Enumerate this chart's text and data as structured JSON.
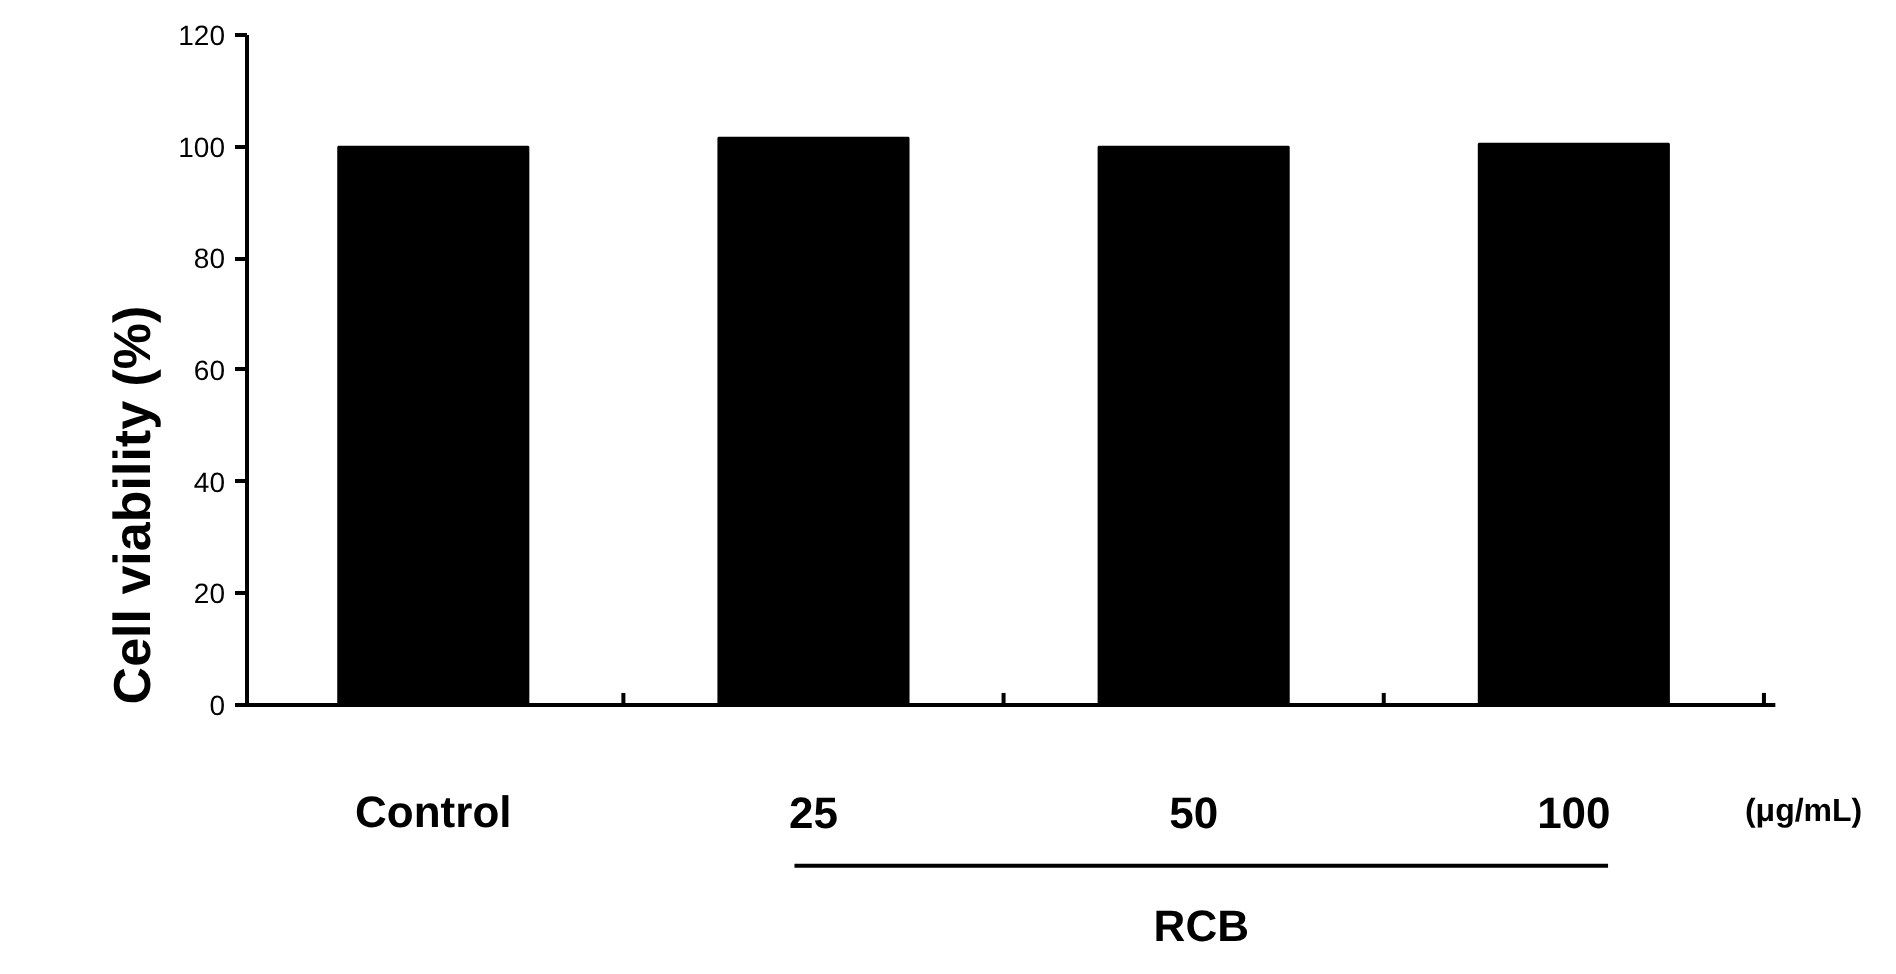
{
  "chart_data": {
    "type": "bar",
    "ylabel": "Cell viability (%)",
    "categories": [
      "Control",
      "25",
      "50",
      "100"
    ],
    "values": [
      100,
      101.6,
      100,
      100.5
    ],
    "color": "#000000",
    "ylim": [
      0,
      120
    ],
    "yticks": [
      0,
      20,
      40,
      60,
      80,
      100,
      120
    ],
    "grid": false,
    "annotations": [
      "(μg/mL)",
      "RCB"
    ]
  }
}
